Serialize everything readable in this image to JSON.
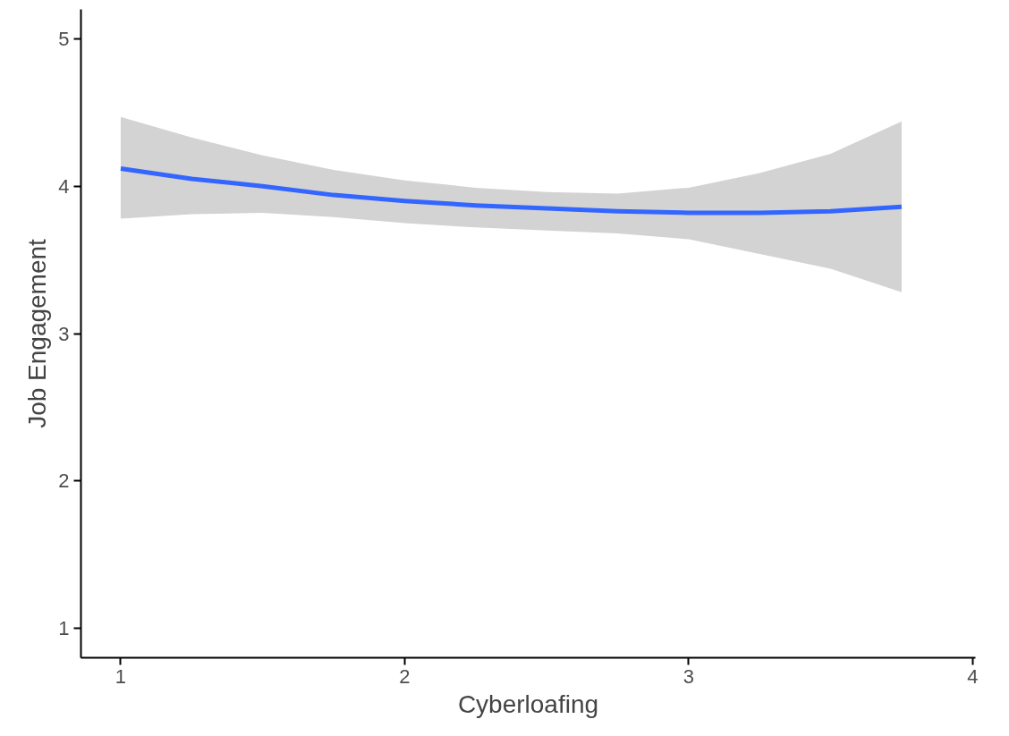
{
  "chart_data": {
    "type": "line",
    "xlabel": "Cyberloafing",
    "ylabel": "Job Engagement",
    "xlim": [
      0.86,
      4.01
    ],
    "xticks": [
      1,
      2,
      3,
      4
    ],
    "ylim": [
      0.8,
      5.2
    ],
    "yticks": [
      1,
      2,
      3,
      4,
      5
    ],
    "grid": false,
    "marker": "none",
    "line_style": "solid",
    "series": [
      {
        "color": "#3366ff",
        "x": [
          1,
          1.25,
          1.5,
          1.75,
          2,
          2.25,
          2.5,
          2.75,
          3,
          3.25,
          3.5,
          3.75
        ],
        "values": [
          4.12,
          4.05,
          4.0,
          3.94,
          3.9,
          3.87,
          3.85,
          3.83,
          3.82,
          3.82,
          3.83,
          3.86
        ],
        "lower": [
          3.78,
          3.81,
          3.82,
          3.79,
          3.75,
          3.72,
          3.7,
          3.68,
          3.64,
          3.54,
          3.44,
          3.28
        ],
        "upper": [
          4.47,
          4.33,
          4.21,
          4.11,
          4.04,
          3.99,
          3.96,
          3.95,
          3.99,
          4.09,
          4.22,
          4.44
        ]
      }
    ]
  }
}
